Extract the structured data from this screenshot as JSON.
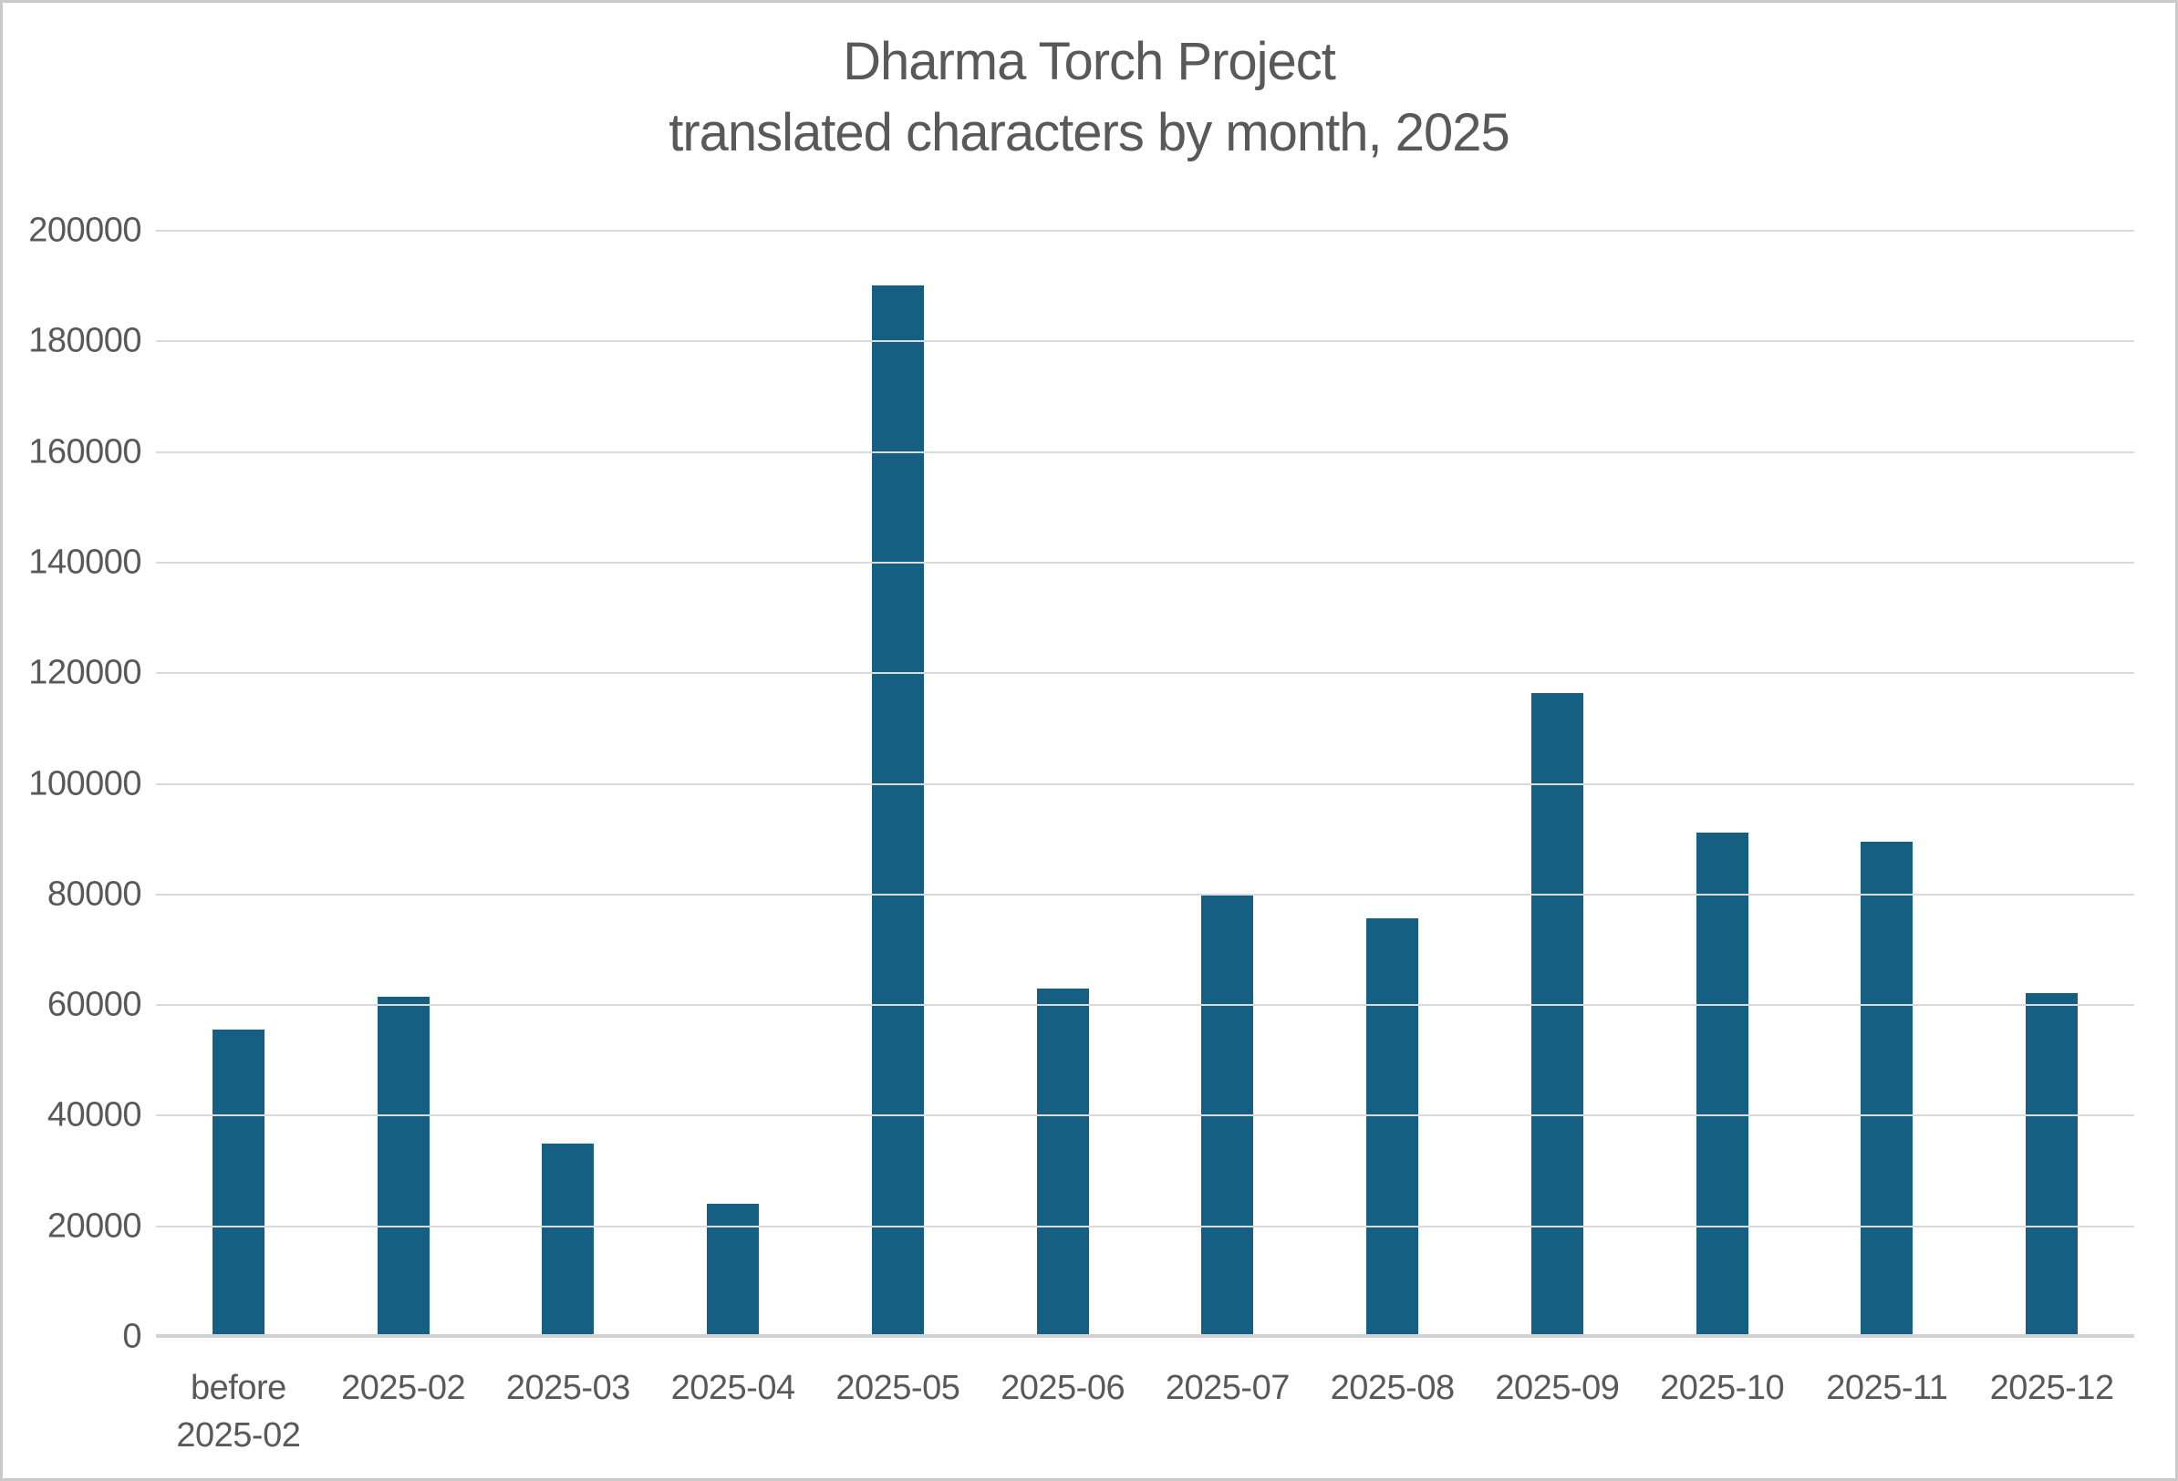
{
  "chart_data": {
    "type": "bar",
    "title": "Dharma Torch Project",
    "subtitle": "translated characters by month, 2025",
    "categories": [
      "before 2025-02",
      "2025-02",
      "2025-03",
      "2025-04",
      "2025-05",
      "2025-06",
      "2025-07",
      "2025-08",
      "2025-09",
      "2025-10",
      "2025-11",
      "2025-12"
    ],
    "category_display": [
      [
        "before",
        "2025-02"
      ],
      [
        "2025-02"
      ],
      [
        "2025-03"
      ],
      [
        "2025-04"
      ],
      [
        "2025-05"
      ],
      [
        "2025-06"
      ],
      [
        "2025-07"
      ],
      [
        "2025-08"
      ],
      [
        "2025-09"
      ],
      [
        "2025-10"
      ],
      [
        "2025-11"
      ],
      [
        "2025-12"
      ]
    ],
    "values": [
      55500,
      61500,
      35000,
      24000,
      190100,
      63000,
      80000,
      75700,
      116400,
      91100,
      89600,
      62100
    ],
    "xlabel": "",
    "ylabel": "",
    "ylim": [
      0,
      200000
    ],
    "ytick_step": 20000,
    "ytick_labels": [
      "0",
      "20000",
      "40000",
      "60000",
      "80000",
      "100000",
      "120000",
      "140000",
      "160000",
      "180000",
      "200000"
    ],
    "grid": "horizontal",
    "legend": "none",
    "bar_color": "#156082",
    "gridline_color": "#dadada",
    "axis_line_color": "#d2d2d2",
    "text_color": "#595959"
  }
}
